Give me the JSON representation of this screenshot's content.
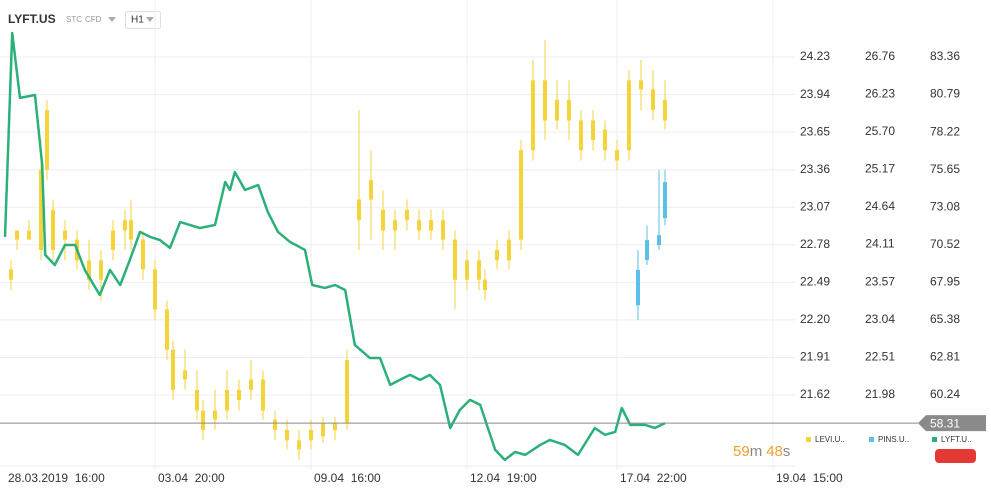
{
  "chart_data": {
    "type": "candlestick",
    "title": "LYFT.US",
    "badges": [
      "STC",
      "CFD"
    ],
    "timeframe": "H1",
    "grid": true,
    "xlim": [
      0,
      135
    ],
    "xticks": [
      {
        "value": 0,
        "label": "28.03.2019  16:00"
      },
      {
        "value": 25,
        "label": "03.04  20:00"
      },
      {
        "value": 51,
        "label": "09.04  16:00"
      },
      {
        "value": 77,
        "label": "12.04  19:00"
      },
      {
        "value": 102,
        "label": "17.04  22:00"
      },
      {
        "value": 128,
        "label": "19.04  15:00"
      }
    ],
    "ylim": [
      21.118,
      24.516
    ],
    "yticks": [
      21.62,
      21.91,
      {
        "value": 22.2,
        "label": "22.20"
      },
      22.49,
      22.78,
      23.07,
      23.36,
      23.65,
      23.94,
      24.23
    ],
    "y2lim": [
      21.061,
      27.283
    ],
    "y2ticks": [
      21.98,
      22.51,
      23.04,
      23.57,
      24.11,
      24.64,
      25.17,
      {
        "value": 25.7,
        "label": "25.70"
      },
      26.23,
      26.76
    ],
    "y3lim": [
      55.79,
      85.89
    ],
    "y3ticks": [
      60.24,
      62.81,
      65.38,
      67.95,
      70.52,
      73.08,
      75.65,
      78.22,
      80.79,
      83.36
    ],
    "series": [
      {
        "name": "LEVI.U..",
        "type": "candlestick",
        "color": "#f5d33a",
        "x": [
          1,
          2,
          4,
          6,
          7,
          8,
          10,
          12,
          14,
          16,
          18,
          20,
          21,
          23,
          25,
          27,
          28,
          30,
          32,
          33,
          35,
          37,
          39,
          41,
          43,
          45,
          47,
          49,
          51,
          53,
          55,
          57,
          59,
          61,
          63,
          65,
          67,
          69,
          71,
          73,
          75,
          77,
          79,
          80,
          82,
          84,
          86,
          88,
          90,
          92,
          94,
          96,
          98,
          100,
          102,
          104,
          106,
          108,
          110
        ],
        "open": [
          22.59,
          22.82,
          22.89,
          22.74,
          23.36,
          23.05,
          22.82,
          22.82,
          22.66,
          22.51,
          22.74,
          22.89,
          22.97,
          22.82,
          22.59,
          22.28,
          21.97,
          21.81,
          21.66,
          21.5,
          21.43,
          21.5,
          21.58,
          21.66,
          21.74,
          21.43,
          21.35,
          21.27,
          21.27,
          21.3,
          21.35,
          21.4,
          22.97,
          23.13,
          23.05,
          22.89,
          22.97,
          22.97,
          22.89,
          22.97,
          22.82,
          22.51,
          22.66,
          22.51,
          22.66,
          22.66,
          22.82,
          23.51,
          24.05,
          23.74,
          23.9,
          23.74,
          23.59,
          23.67,
          23.51,
          23.51,
          24.05,
          23.98,
          23.9
        ],
        "high": [
          22.66,
          22.89,
          22.97,
          23.59,
          23.9,
          23.13,
          22.97,
          22.89,
          22.82,
          22.74,
          22.97,
          23.05,
          23.13,
          22.89,
          22.66,
          22.35,
          22.04,
          21.97,
          21.81,
          21.58,
          21.66,
          21.81,
          21.74,
          21.89,
          21.81,
          21.5,
          21.43,
          21.35,
          21.43,
          21.45,
          21.45,
          21.97,
          23.82,
          23.51,
          23.2,
          23.05,
          23.13,
          23.05,
          23.05,
          23.05,
          22.89,
          22.74,
          22.74,
          22.59,
          22.82,
          22.89,
          23.59,
          24.21,
          24.36,
          24.05,
          24.05,
          23.82,
          23.82,
          23.74,
          23.59,
          24.13,
          24.21,
          24.13,
          24.05
        ],
        "low": [
          22.43,
          22.74,
          22.82,
          22.66,
          23.28,
          22.66,
          22.66,
          22.59,
          22.43,
          22.35,
          22.66,
          22.74,
          22.74,
          22.51,
          22.2,
          21.89,
          21.58,
          21.66,
          21.43,
          21.27,
          21.35,
          21.43,
          21.5,
          21.58,
          21.43,
          21.27,
          21.2,
          21.12,
          21.2,
          21.25,
          21.27,
          21.35,
          22.74,
          22.82,
          22.74,
          22.74,
          22.89,
          22.82,
          22.82,
          22.74,
          22.28,
          22.43,
          22.43,
          22.35,
          22.59,
          22.59,
          22.74,
          23.43,
          23.59,
          23.67,
          23.59,
          23.43,
          23.51,
          23.43,
          23.36,
          23.43,
          23.82,
          23.74,
          23.67
        ],
        "close": [
          22.51,
          22.89,
          22.82,
          23.36,
          23.82,
          22.74,
          22.89,
          22.66,
          22.51,
          22.66,
          22.89,
          22.97,
          22.82,
          22.59,
          22.28,
          21.97,
          21.66,
          21.74,
          21.5,
          21.35,
          21.5,
          21.66,
          21.66,
          21.74,
          21.5,
          21.35,
          21.27,
          21.2,
          21.35,
          21.4,
          21.4,
          21.89,
          23.13,
          23.28,
          22.89,
          22.97,
          23.05,
          22.89,
          22.97,
          22.82,
          22.51,
          22.66,
          22.51,
          22.43,
          22.74,
          22.82,
          23.51,
          24.05,
          23.74,
          23.9,
          23.74,
          23.51,
          23.74,
          23.51,
          23.43,
          24.05,
          23.98,
          23.82,
          23.74
        ]
      },
      {
        "name": "PINS.U..",
        "type": "candlestick",
        "axis": "y2",
        "color": "#5bbfe9",
        "x": [
          105.5,
          107,
          109,
          110
        ],
        "open": [
          23.25,
          23.89,
          24.1,
          24.48
        ],
        "high": [
          24.03,
          24.38,
          25.16,
          25.16
        ],
        "low": [
          23.04,
          23.82,
          24.03,
          24.38
        ],
        "close": [
          23.75,
          24.17,
          24.24,
          24.99
        ]
      },
      {
        "name": "LYFT.U..",
        "type": "line",
        "axis": "y3",
        "color": "#2bb07a",
        "x": [
          0,
          1.2,
          2.5,
          5,
          6.2,
          6.7,
          8.3,
          10,
          11.7,
          13.3,
          15.8,
          17.5,
          19.2,
          20.8,
          22.5,
          24.2,
          25.8,
          27.5,
          29.2,
          30.8,
          32.5,
          35,
          36.7,
          37.5,
          38.3,
          40,
          42.2,
          43.8,
          45.5,
          47.5,
          50,
          51.2,
          53.3,
          55,
          56.7,
          58.3,
          60.8,
          62.5,
          64.2,
          65.8,
          67.5,
          69.2,
          70.8,
          72.5,
          74.2,
          75.8,
          77.5,
          79.2,
          81.7,
          83.3,
          85,
          86.7,
          89.2,
          90.8,
          93.3,
          95.5,
          98.3,
          100,
          101.7,
          102.8,
          104.2,
          106.7,
          108.3,
          110
        ],
        "values": [
          71.05,
          85,
          80.56,
          80.76,
          75.97,
          69.82,
          69.13,
          70.5,
          70.5,
          68.79,
          67.08,
          68.79,
          67.76,
          69.47,
          71.39,
          71.05,
          70.84,
          70.3,
          72.07,
          71.87,
          71.66,
          71.87,
          74.81,
          74.26,
          75.49,
          74.26,
          74.6,
          72.76,
          71.39,
          70.71,
          70.16,
          67.76,
          67.56,
          67.76,
          67.42,
          63.66,
          62.77,
          62.77,
          60.93,
          61.27,
          61.61,
          61.27,
          61.61,
          60.93,
          57.98,
          59.21,
          59.9,
          59.56,
          56.48,
          55.8,
          56.34,
          56.14,
          56.82,
          57.16,
          56.82,
          56.14,
          57.98,
          57.51,
          57.71,
          59.35,
          58.19,
          58.19,
          57.98,
          58.31
        ]
      }
    ],
    "last_price": 58.31,
    "countdown": [
      "59",
      "m",
      "48",
      "s"
    ]
  }
}
